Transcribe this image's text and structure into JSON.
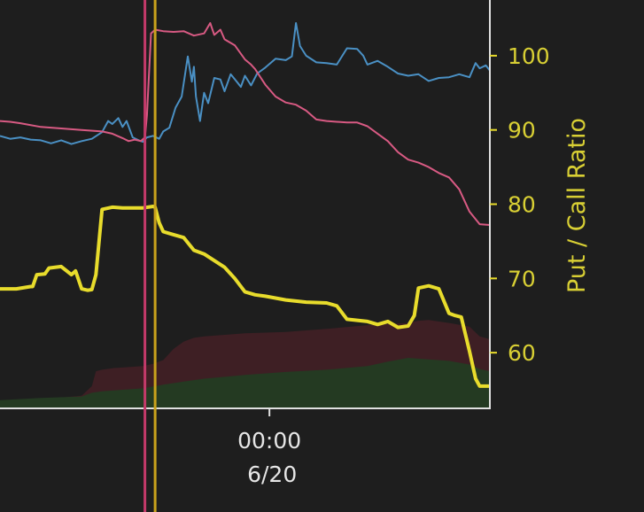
{
  "chart_data": {
    "type": "line",
    "ylabel": "Put / Call Ratio",
    "y_ticks": [
      60,
      70,
      80,
      90,
      100
    ],
    "ylim": [
      52.5,
      107.5
    ],
    "x_ticks": [
      {
        "x": 13.2,
        "line1": "00:00",
        "line2": "6/20"
      }
    ],
    "xlim": [
      0,
      24
    ],
    "grid": false,
    "colors": {
      "background": "#1e1e1e",
      "put_call_ratio": "#e8dc2c",
      "pink_series": "#d85a83",
      "blue_series": "#4a90c4",
      "pink_vline": "#c43a6a",
      "gold_vline": "#c9a21c",
      "red_band": "#3e1f24",
      "green_band": "#243a22",
      "frame": "#e0e0e0"
    },
    "vlines": [
      {
        "name": "pink_vline",
        "x": 7.1
      },
      {
        "name": "gold_vline",
        "x": 7.6
      }
    ],
    "series": [
      {
        "key": "put_call_ratio",
        "x": [
          0,
          0.8,
          1.5,
          1.6,
          1.8,
          2.2,
          2.4,
          3.0,
          3.5,
          3.7,
          4.0,
          4.3,
          4.5,
          4.7,
          5.0,
          5.5,
          6.0,
          7.0,
          7.5,
          7.6,
          7.8,
          8.0,
          8.5,
          9.0,
          9.5,
          10.0,
          11.0,
          11.5,
          12.0,
          12.5,
          13.0,
          14.0,
          15.0,
          16.0,
          16.5,
          17.0,
          18.0,
          18.5,
          19.0,
          19.5,
          20.0,
          20.3,
          20.5,
          21.0,
          21.5,
          22.0,
          22.3,
          22.6,
          23.0,
          23.3,
          23.5,
          24.0
        ],
        "y": [
          68.6,
          68.6,
          68.9,
          68.9,
          70.5,
          70.6,
          71.4,
          71.6,
          70.5,
          71.0,
          68.6,
          68.4,
          68.5,
          70.5,
          79.3,
          79.6,
          79.5,
          79.5,
          79.7,
          79.6,
          77.5,
          76.3,
          75.9,
          75.5,
          73.8,
          73.3,
          71.5,
          70.0,
          68.2,
          67.8,
          67.6,
          67.1,
          66.8,
          66.7,
          66.3,
          64.5,
          64.2,
          63.8,
          64.2,
          63.4,
          63.6,
          65.0,
          68.7,
          69.0,
          68.6,
          65.3,
          65.0,
          64.8,
          60.2,
          56.5,
          55.5,
          55.5
        ]
      },
      {
        "key": "pink_series",
        "x": [
          0,
          0.5,
          1.0,
          2.0,
          3.0,
          4.0,
          5.0,
          5.5,
          6.0,
          6.3,
          6.6,
          6.9,
          7.1,
          7.2,
          7.4,
          7.6,
          7.8,
          8.0,
          8.5,
          9.0,
          9.5,
          10.0,
          10.3,
          10.5,
          10.8,
          11.0,
          11.5,
          12.0,
          12.3,
          12.5,
          13.0,
          13.5,
          14.0,
          14.5,
          15.0,
          15.5,
          16.0,
          16.5,
          17.0,
          17.5,
          18.0,
          18.5,
          19.0,
          19.5,
          20.0,
          20.5,
          21.0,
          21.5,
          22.0,
          22.5,
          23.0,
          23.5,
          24.0
        ],
        "y": [
          91.2,
          91.1,
          90.9,
          90.4,
          90.2,
          90.0,
          89.8,
          89.5,
          88.9,
          88.5,
          88.7,
          88.5,
          89.0,
          92.0,
          103.0,
          103.5,
          103.4,
          103.3,
          103.2,
          103.3,
          102.7,
          103.0,
          104.4,
          102.8,
          103.5,
          102.2,
          101.4,
          99.5,
          98.8,
          98.2,
          96.1,
          94.5,
          93.7,
          93.4,
          92.6,
          91.4,
          91.2,
          91.1,
          91.0,
          91.0,
          90.5,
          89.5,
          88.5,
          87.0,
          86.0,
          85.6,
          85.0,
          84.2,
          83.6,
          82.0,
          79.0,
          77.3,
          77.2
        ]
      },
      {
        "key": "blue_series",
        "x": [
          0,
          0.5,
          1.0,
          1.5,
          2.0,
          2.5,
          3.0,
          3.5,
          4.0,
          4.5,
          5.0,
          5.3,
          5.5,
          5.8,
          6.0,
          6.2,
          6.5,
          6.8,
          7.0,
          7.2,
          7.5,
          7.8,
          8.0,
          8.3,
          8.6,
          8.9,
          9.2,
          9.4,
          9.5,
          9.6,
          9.8,
          10.0,
          10.2,
          10.5,
          10.8,
          11.0,
          11.3,
          11.6,
          11.8,
          12.0,
          12.3,
          12.6,
          13.0,
          13.5,
          14.0,
          14.3,
          14.5,
          14.7,
          15.0,
          15.5,
          16.0,
          16.5,
          17.0,
          17.5,
          17.8,
          18.0,
          18.5,
          19.0,
          19.5,
          20.0,
          20.5,
          21.0,
          21.5,
          22.0,
          22.5,
          23.0,
          23.3,
          23.5,
          23.8,
          24.0
        ],
        "y": [
          89.2,
          88.8,
          89.0,
          88.7,
          88.6,
          88.2,
          88.6,
          88.1,
          88.5,
          88.8,
          89.7,
          91.2,
          90.8,
          91.6,
          90.4,
          91.2,
          89.0,
          88.6,
          88.4,
          89.0,
          89.2,
          88.8,
          89.8,
          90.3,
          93.0,
          94.5,
          99.9,
          96.5,
          98.5,
          94.5,
          91.2,
          95.0,
          93.6,
          97.0,
          96.8,
          95.2,
          97.5,
          96.5,
          95.8,
          97.3,
          96.0,
          97.6,
          98.4,
          99.6,
          99.4,
          99.9,
          104.4,
          101.3,
          100.0,
          99.1,
          99.0,
          98.8,
          101.0,
          100.9,
          100.0,
          98.8,
          99.3,
          98.5,
          97.6,
          97.3,
          97.5,
          96.6,
          97.0,
          97.1,
          97.5,
          97.1,
          99.0,
          98.3,
          98.7,
          98.0
        ]
      }
    ],
    "bands": [
      {
        "key": "red_band",
        "x": [
          0,
          2.0,
          4.0,
          4.5,
          4.7,
          5.0,
          5.5,
          6.0,
          7.0,
          7.5,
          8.0,
          8.5,
          9.0,
          9.5,
          10.0,
          12.0,
          14.0,
          16.0,
          18.0,
          20.0,
          20.5,
          21.0,
          22.0,
          23.0,
          23.5,
          24.0
        ],
        "y": [
          53.5,
          53.7,
          54.2,
          55.5,
          57.5,
          57.7,
          57.9,
          58.0,
          58.2,
          58.5,
          59.0,
          60.5,
          61.5,
          62.0,
          62.2,
          62.6,
          62.8,
          63.2,
          63.7,
          64.0,
          64.3,
          64.4,
          64.0,
          63.5,
          62.2,
          61.8
        ]
      },
      {
        "key": "green_band",
        "x": [
          0,
          2.0,
          4.0,
          4.5,
          5.0,
          6.0,
          7.0,
          8.0,
          9.0,
          10.0,
          12.0,
          14.0,
          16.0,
          18.0,
          19.0,
          20.0,
          21.0,
          22.0,
          23.0,
          23.5,
          24.0
        ],
        "y": [
          53.6,
          53.9,
          54.1,
          54.6,
          54.8,
          55.0,
          55.2,
          55.7,
          56.1,
          56.5,
          57.0,
          57.4,
          57.7,
          58.2,
          58.8,
          59.3,
          59.1,
          58.9,
          58.4,
          57.8,
          57.5
        ]
      }
    ]
  }
}
